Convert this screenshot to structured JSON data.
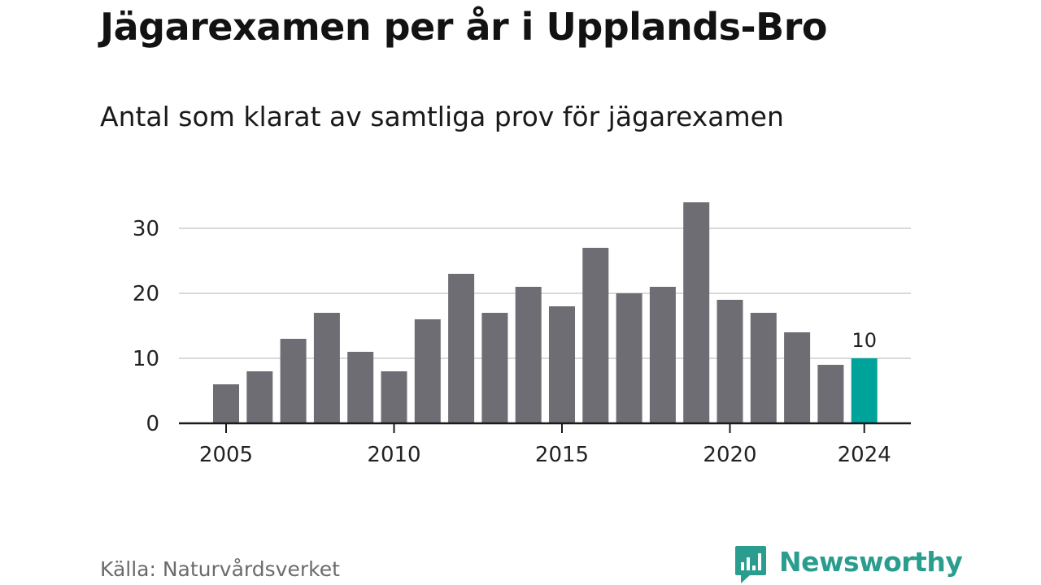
{
  "title": "Jägarexamen per år i Upplands-Bro",
  "subtitle": "Antal som klarat av samtliga prov för jägarexamen",
  "source": "Källa: Naturvårdsverket",
  "brand": {
    "name": "Newsworthy",
    "icon": "newsworthy-logo-icon",
    "color": "#2a9d8f"
  },
  "chart_data": {
    "type": "bar",
    "x": [
      2005,
      2006,
      2007,
      2008,
      2009,
      2010,
      2011,
      2012,
      2013,
      2014,
      2015,
      2016,
      2017,
      2018,
      2019,
      2020,
      2021,
      2022,
      2023,
      2024
    ],
    "values": [
      6,
      8,
      13,
      17,
      11,
      8,
      16,
      23,
      17,
      21,
      18,
      27,
      20,
      21,
      34,
      19,
      17,
      14,
      9,
      10
    ],
    "ylim": [
      0,
      35
    ],
    "yticks": [
      0,
      10,
      20,
      30
    ],
    "xticks": [
      2005,
      2010,
      2015,
      2020,
      2024
    ],
    "highlight": {
      "x": 2024,
      "label": "10",
      "color": "#00a39a"
    },
    "bar_color": "#6e6d73",
    "grid": true,
    "xlabel": "",
    "ylabel": ""
  }
}
